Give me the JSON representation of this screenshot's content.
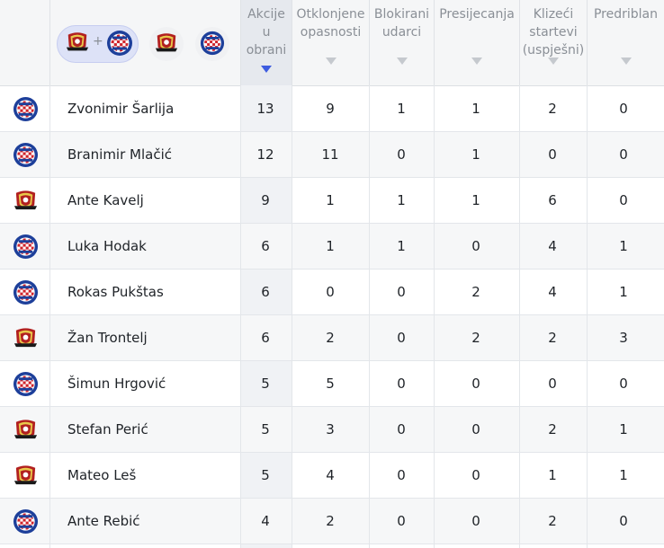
{
  "header": {
    "columns": [
      {
        "id": "akcije",
        "label": [
          "Akcije",
          "u",
          "obrani"
        ],
        "active": true
      },
      {
        "id": "otklonjene",
        "label": [
          "Otklonjene",
          "opasnosti"
        ]
      },
      {
        "id": "blokirani",
        "label": [
          "Blokirani",
          "udarci"
        ]
      },
      {
        "id": "presijecanja",
        "label": [
          "Presijecanja"
        ]
      },
      {
        "id": "klizeci",
        "label": [
          "Klizeći",
          "startevi",
          "(uspješni)"
        ]
      },
      {
        "id": "predribla",
        "label": [
          "Predriblan"
        ]
      }
    ],
    "filters": {
      "combined": "both-teams",
      "plus": "+",
      "team_a": "gorica",
      "team_b": "hajduk"
    }
  },
  "colors": {
    "sort_active": "#3d5ce0",
    "hajduk": "#1d3f9a",
    "gorica": "#b2201f"
  },
  "rows": [
    {
      "team": "hajduk",
      "name": "Zvonimir Šarlija",
      "vals": [
        "13",
        "9",
        "1",
        "1",
        "2",
        "0"
      ]
    },
    {
      "team": "hajduk",
      "name": "Branimir Mlačić",
      "vals": [
        "12",
        "11",
        "0",
        "1",
        "0",
        "0"
      ]
    },
    {
      "team": "gorica",
      "name": "Ante Kavelj",
      "vals": [
        "9",
        "1",
        "1",
        "1",
        "6",
        "0"
      ]
    },
    {
      "team": "hajduk",
      "name": "Luka Hodak",
      "vals": [
        "6",
        "1",
        "1",
        "0",
        "4",
        "1"
      ]
    },
    {
      "team": "hajduk",
      "name": "Rokas Pukštas",
      "vals": [
        "6",
        "0",
        "0",
        "2",
        "4",
        "1"
      ]
    },
    {
      "team": "gorica",
      "name": "Žan Trontelj",
      "vals": [
        "6",
        "2",
        "0",
        "2",
        "2",
        "3"
      ]
    },
    {
      "team": "hajduk",
      "name": "Šimun Hrgović",
      "vals": [
        "5",
        "5",
        "0",
        "0",
        "0",
        "0"
      ]
    },
    {
      "team": "gorica",
      "name": "Stefan Perić",
      "vals": [
        "5",
        "3",
        "0",
        "0",
        "2",
        "1"
      ]
    },
    {
      "team": "gorica",
      "name": "Mateo Leš",
      "vals": [
        "5",
        "4",
        "0",
        "0",
        "1",
        "1"
      ]
    },
    {
      "team": "hajduk",
      "name": "Ante Rebić",
      "vals": [
        "4",
        "2",
        "0",
        "0",
        "2",
        "0"
      ]
    }
  ]
}
